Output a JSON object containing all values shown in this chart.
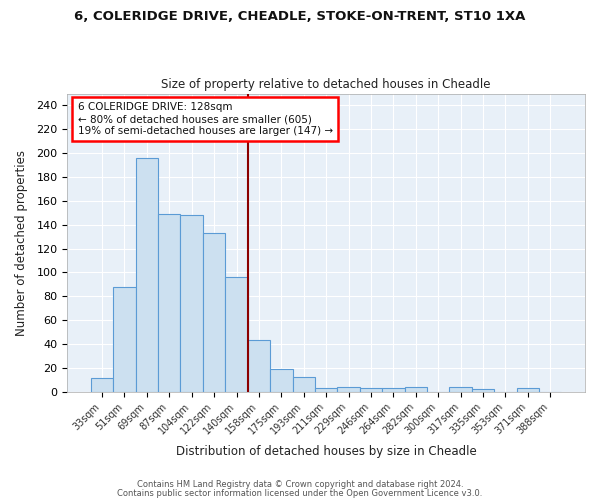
{
  "title1": "6, COLERIDGE DRIVE, CHEADLE, STOKE-ON-TRENT, ST10 1XA",
  "title2": "Size of property relative to detached houses in Cheadle",
  "xlabel": "Distribution of detached houses by size in Cheadle",
  "ylabel": "Number of detached properties",
  "categories": [
    "33sqm",
    "51sqm",
    "69sqm",
    "87sqm",
    "104sqm",
    "122sqm",
    "140sqm",
    "158sqm",
    "175sqm",
    "193sqm",
    "211sqm",
    "229sqm",
    "246sqm",
    "264sqm",
    "282sqm",
    "300sqm",
    "317sqm",
    "335sqm",
    "353sqm",
    "371sqm",
    "388sqm"
  ],
  "values": [
    11,
    88,
    196,
    149,
    148,
    133,
    96,
    43,
    19,
    12,
    3,
    4,
    3,
    3,
    4,
    0,
    4,
    2,
    0,
    3,
    0
  ],
  "bar_color": "#cce0f0",
  "bar_edge_color": "#5b9bd5",
  "vline_color": "#8b0000",
  "vline_pos": 6.5,
  "annotation_text_line1": "6 COLERIDGE DRIVE: 128sqm",
  "annotation_text_line2": "← 80% of detached houses are smaller (605)",
  "annotation_text_line3": "19% of semi-detached houses are larger (147) →",
  "footer_line1": "Contains HM Land Registry data © Crown copyright and database right 2024.",
  "footer_line2": "Contains public sector information licensed under the Open Government Licence v3.0.",
  "ylim": [
    0,
    250
  ],
  "yticks": [
    0,
    20,
    40,
    60,
    80,
    100,
    120,
    140,
    160,
    180,
    200,
    220,
    240
  ],
  "bg_color": "#ffffff",
  "plot_bg_color": "#e8f0f8",
  "grid_color": "#ffffff"
}
